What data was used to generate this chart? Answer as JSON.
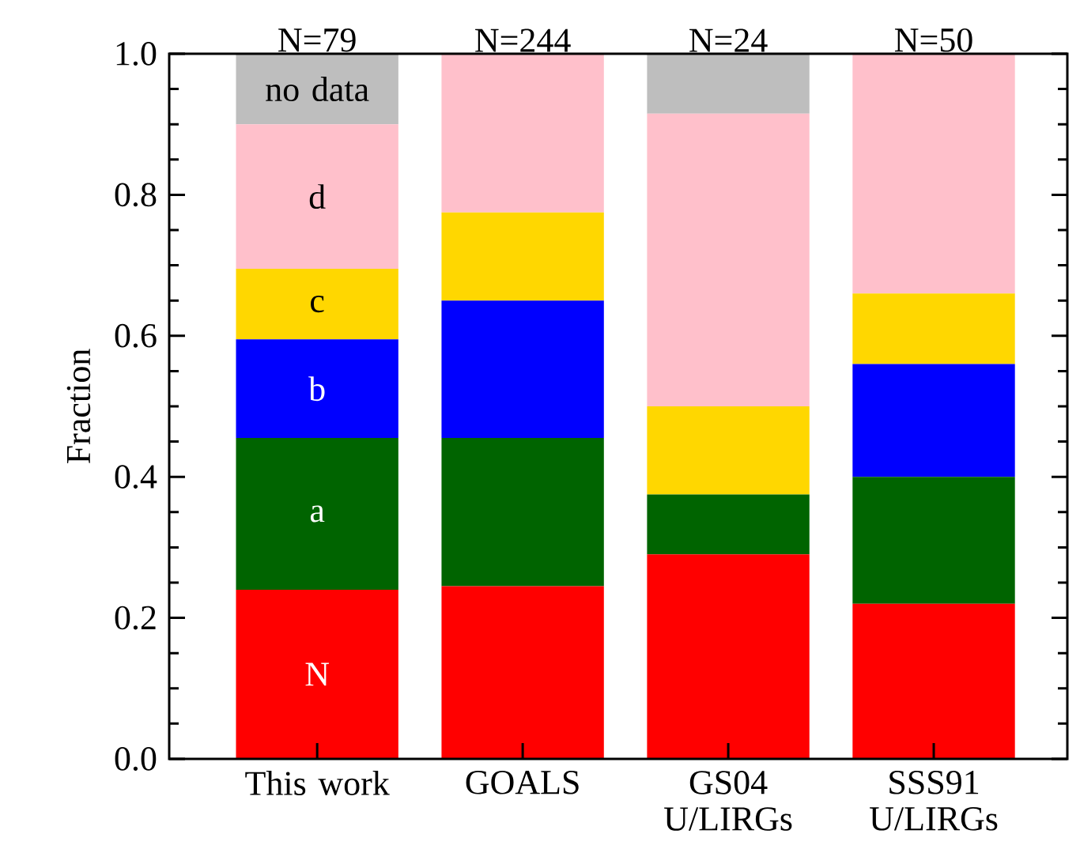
{
  "chart_data": {
    "type": "bar",
    "stacked": true,
    "ylabel": "Fraction",
    "categories": [
      "This work",
      "GOALS",
      "GS04 U/LIRGs",
      "SSS91 U/LIRGs"
    ],
    "ylim": [
      0,
      1
    ],
    "yticks": [
      {
        "value": 0,
        "label": "0.0"
      },
      {
        "value": 0.2,
        "label": "0.2"
      },
      {
        "value": 0.4,
        "label": "0.4"
      },
      {
        "value": 0.6,
        "label": "0.6"
      },
      {
        "value": 0.8,
        "label": "0.8"
      },
      {
        "value": 1,
        "label": "1.0"
      }
    ],
    "annotations": [
      "N=79",
      "N=244",
      "N=24",
      "N=50"
    ],
    "series": [
      {
        "name": "N",
        "color": "#ff0000",
        "values": [
          0.24,
          0.245,
          0.29,
          0.22
        ]
      },
      {
        "name": "a",
        "color": "#006400",
        "values": [
          0.215,
          0.21,
          0.085,
          0.18
        ]
      },
      {
        "name": "b",
        "color": "#0000ff",
        "values": [
          0.14,
          0.195,
          0,
          0.16
        ]
      },
      {
        "name": "c",
        "color": "#ffd700",
        "values": [
          0.1,
          0.125,
          0.125,
          0.1
        ]
      },
      {
        "name": "d",
        "color": "#ffc0cb",
        "values": [
          0.205,
          0.225,
          0.415,
          0.34
        ]
      },
      {
        "name": "no data",
        "color": "#bebebe",
        "values": [
          0.1,
          0,
          0.085,
          0
        ]
      }
    ]
  }
}
